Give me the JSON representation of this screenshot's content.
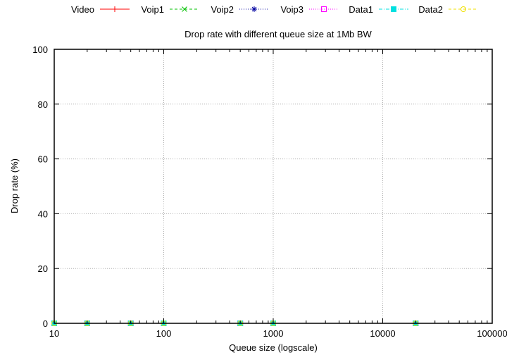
{
  "chart_data": {
    "type": "line",
    "title": "Drop rate with different queue size at 1Mb BW",
    "xlabel": "Queue size (logscale)",
    "ylabel": "Drop rate (%)",
    "xscale": "log",
    "xlim": [
      10,
      100000
    ],
    "ylim": [
      0,
      100
    ],
    "xticks": [
      10,
      100,
      1000,
      10000,
      100000
    ],
    "xtick_labels": [
      "10",
      "100",
      "1000",
      "10000",
      "100000"
    ],
    "yticks": [
      0,
      20,
      40,
      60,
      80,
      100
    ],
    "ytick_labels": [
      "0",
      "20",
      "40",
      "60",
      "80",
      "100"
    ],
    "grid": true,
    "legend_position": "top",
    "x": [
      10,
      20,
      50,
      100,
      500,
      1000,
      20000
    ],
    "series": [
      {
        "name": "Video",
        "color": "#ff0000",
        "marker": "plus",
        "dash": "solid",
        "values": [
          0,
          0,
          0,
          0,
          0,
          0,
          0
        ]
      },
      {
        "name": "Voip1",
        "color": "#00c000",
        "marker": "cross",
        "dash": "dashed",
        "values": [
          0,
          0,
          0,
          0,
          0,
          0,
          0
        ]
      },
      {
        "name": "Voip2",
        "color": "#0000a0",
        "marker": "star",
        "dash": "dotted",
        "values": [
          0,
          0,
          0,
          0,
          0,
          0,
          0
        ]
      },
      {
        "name": "Voip3",
        "color": "#ff00ff",
        "marker": "open-square",
        "dash": "dotted",
        "values": [
          0,
          0,
          0,
          0,
          0,
          0,
          0
        ]
      },
      {
        "name": "Data1",
        "color": "#00e0e0",
        "marker": "filled-square",
        "dash": "dashdot",
        "values": [
          0,
          0,
          0,
          0,
          0,
          0,
          0
        ]
      },
      {
        "name": "Data2",
        "color": "#f0e000",
        "marker": "open-circle",
        "dash": "dashed",
        "values": [
          0,
          0,
          0,
          0,
          0,
          0,
          0
        ]
      }
    ]
  }
}
